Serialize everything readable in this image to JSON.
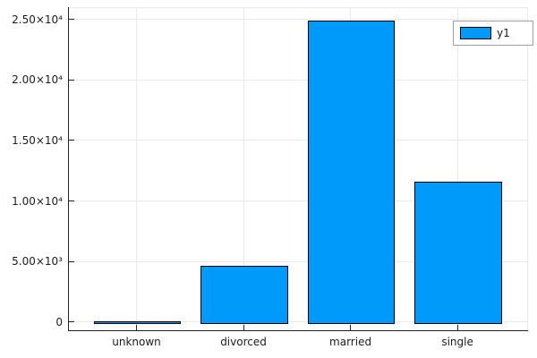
{
  "chart_data": {
    "type": "bar",
    "title": "",
    "xlabel": "",
    "ylabel": "",
    "categories": [
      "unknown",
      "divorced",
      "married",
      "single"
    ],
    "series": [
      {
        "name": "y1",
        "values": [
          80,
          4612,
          24928,
          11568
        ]
      }
    ],
    "xlim": [
      0.36,
      4.66
    ],
    "ylim": [
      -750,
      26000
    ],
    "yticks": [
      0,
      5000,
      10000,
      15000,
      20000,
      25000
    ],
    "ytick_labels": [
      "0",
      "5.00×10³",
      "1.00×10⁴",
      "1.50×10⁴",
      "2.00×10⁴",
      "2.50×10⁴"
    ],
    "bar_width_ratio": 0.8,
    "grid": true,
    "legend_position": "top-right"
  },
  "legend": {
    "entries": [
      {
        "label": "y1",
        "swatch_color": "#009AFA"
      }
    ]
  },
  "colors": {
    "bar_fill": "#009AFA",
    "bar_stroke": "#000000",
    "grid": "#E9E9E9",
    "spine_dark": "#232323",
    "spine_light": "#E9E9E9",
    "legend_border": "#9E9E9E",
    "text": "#1C1C1C",
    "background": "#FFFFFF"
  }
}
